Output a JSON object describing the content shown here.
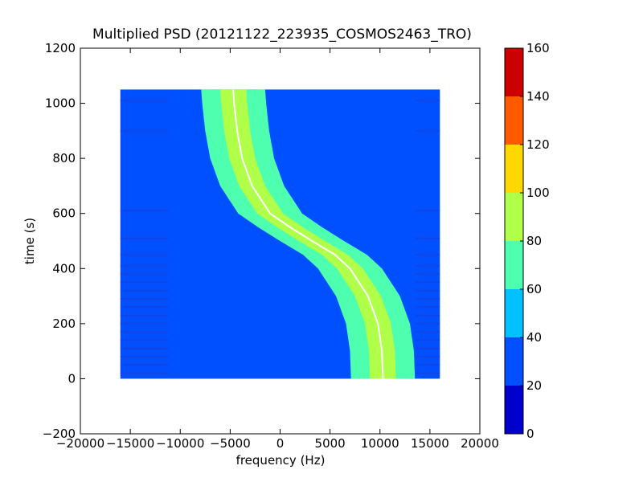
{
  "chart_data": {
    "type": "heatmap",
    "title": "Multiplied PSD (20121122_223935_COSMOS2463_TRO)",
    "xlabel": "frequency (Hz)",
    "ylabel": "time (s)",
    "xlim": [
      -20000,
      20000
    ],
    "ylim": [
      -200,
      1200
    ],
    "xticks": [
      "−20000",
      "−15000",
      "−10000",
      "−5000",
      "0",
      "5000",
      "10000",
      "15000",
      "20000"
    ],
    "xtick_values": [
      -20000,
      -15000,
      -10000,
      -5000,
      0,
      5000,
      10000,
      15000,
      20000
    ],
    "yticks": [
      "−200",
      "0",
      "200",
      "400",
      "600",
      "800",
      "1000",
      "1200"
    ],
    "ytick_values": [
      -200,
      0,
      200,
      400,
      600,
      800,
      1000,
      1200
    ],
    "grid": false,
    "data_extent": {
      "freq": [
        -16000,
        16000
      ],
      "time": [
        0,
        1050
      ]
    },
    "signal_track": {
      "description_free": true,
      "points": [
        {
          "time": 0,
          "freq": 10300
        },
        {
          "time": 100,
          "freq": 10200
        },
        {
          "time": 200,
          "freq": 9800
        },
        {
          "time": 300,
          "freq": 8800
        },
        {
          "time": 400,
          "freq": 7000
        },
        {
          "time": 450,
          "freq": 5500
        },
        {
          "time": 500,
          "freq": 3200
        },
        {
          "time": 550,
          "freq": 1000
        },
        {
          "time": 600,
          "freq": -1000
        },
        {
          "time": 700,
          "freq": -2800
        },
        {
          "time": 800,
          "freq": -3800
        },
        {
          "time": 900,
          "freq": -4300
        },
        {
          "time": 1000,
          "freq": -4600
        },
        {
          "time": 1050,
          "freq": -4700
        }
      ],
      "bands": [
        {
          "level": 70,
          "half_width_hz": 3200
        },
        {
          "level": 60,
          "half_width_hz": 2400
        },
        {
          "level": 80,
          "half_width_hz": 1300
        },
        {
          "level": 90,
          "half_width_hz": 500
        }
      ]
    },
    "background_level": 30,
    "colorbar": {
      "min": 0,
      "max": 160,
      "ticks": [
        "0",
        "20",
        "40",
        "60",
        "80",
        "100",
        "120",
        "140",
        "160"
      ],
      "levels": [
        {
          "from": 0,
          "to": 20,
          "color": "#0000cd"
        },
        {
          "from": 20,
          "to": 40,
          "color": "#0050ff"
        },
        {
          "from": 40,
          "to": 60,
          "color": "#00c0ff"
        },
        {
          "from": 60,
          "to": 80,
          "color": "#4dffae"
        },
        {
          "from": 80,
          "to": 100,
          "color": "#b0ff48"
        },
        {
          "from": 100,
          "to": 120,
          "color": "#ffd800"
        },
        {
          "from": 120,
          "to": 140,
          "color": "#ff5a00"
        },
        {
          "from": 140,
          "to": 160,
          "color": "#cc0000"
        }
      ]
    }
  }
}
